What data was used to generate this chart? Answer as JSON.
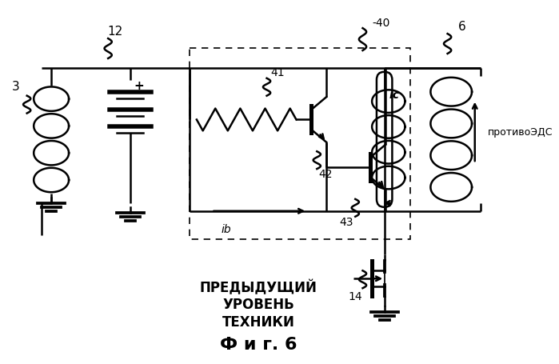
{
  "title": "Ф и г. 6",
  "subtitle_lines": [
    "ПРЕДЫДУЩИЙ",
    "УРОВЕНЬ",
    "ТЕХНИКИ"
  ],
  "bg_color": "#ffffff",
  "line_color": "#000000",
  "lw": 1.8
}
